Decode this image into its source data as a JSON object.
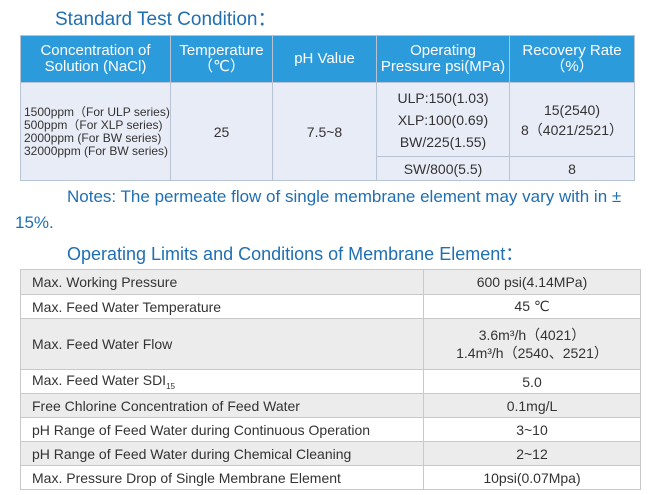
{
  "title1": "Standard Test Condition：",
  "test_table": {
    "headers": [
      [
        "Concentration of",
        "Solution (NaCl)"
      ],
      [
        "Temperature",
        "（℃）"
      ],
      [
        "pH Value"
      ],
      [
        "Operating",
        "Pressure psi(MPa)"
      ],
      [
        "Recovery Rate",
        "（%）"
      ]
    ],
    "concentrations": [
      "1500ppm（For ULP series)",
      "500ppm（For XLP series)",
      "2000ppm (For BW series)",
      "32000ppm (For BW series)"
    ],
    "temperature": "25",
    "ph": "7.5~8",
    "pressures_main": [
      "ULP:150(1.03)",
      "XLP:100(0.69)",
      "BW/225(1.55)"
    ],
    "pressure_sw": "SW/800(5.5)",
    "recovery_main": [
      "15(2540)",
      "8（4021/2521）"
    ],
    "recovery_sw": "8"
  },
  "notes": "Notes: The permeate flow of single membrane element may vary with in ± 15%.",
  "title2": "Operating Limits and Conditions of Membrane Element：",
  "limits": [
    {
      "label": "Max. Working Pressure",
      "value": "600 psi(4.14MPa)"
    },
    {
      "label": "Max. Feed Water Temperature",
      "value": "45 ℃"
    },
    {
      "label": "Max. Feed Water Flow",
      "value_lines": [
        "3.6m³/h（4021）",
        "1.4m³/h（2540、2521）"
      ]
    },
    {
      "label": "Max. Feed Water SDI",
      "label_sub": "15",
      "value": "5.0"
    },
    {
      "label": "Free Chlorine Concentration of Feed Water",
      "value": "0.1mg/L"
    },
    {
      "label": "pH Range of Feed Water during Continuous Operation",
      "value": "3~10"
    },
    {
      "label": "pH Range of Feed Water during Chemical Cleaning",
      "value": "2~12"
    },
    {
      "label": "Max. Pressure Drop of Single Membrane Element",
      "value": "10psi(0.07Mpa)"
    }
  ]
}
